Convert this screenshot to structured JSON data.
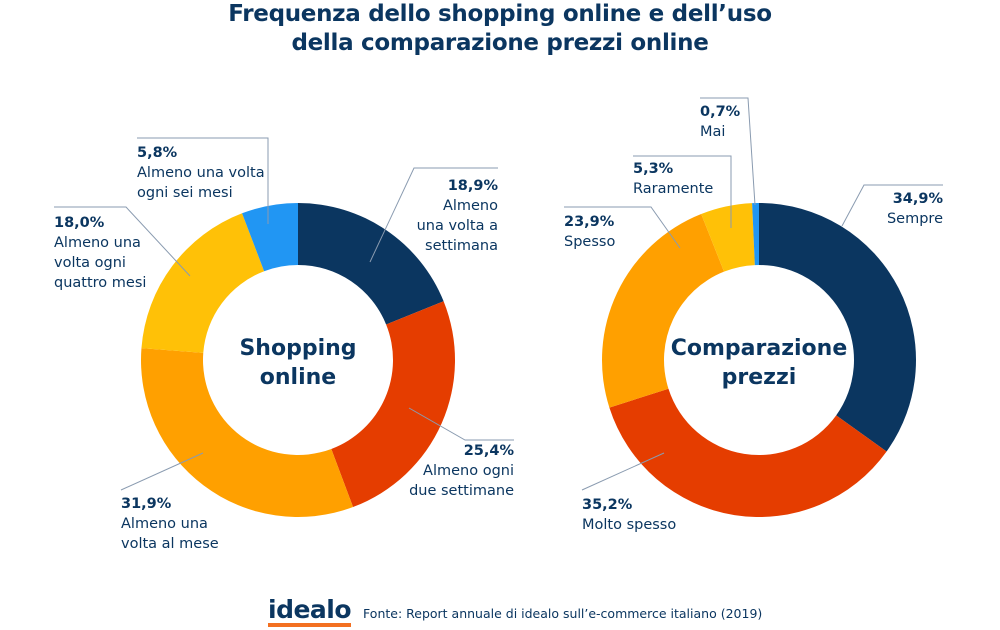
{
  "title_lines": [
    "Frequenza dello shopping online e dell’uso",
    "della comparazione prezzi online"
  ],
  "colors": {
    "dark_blue": "#0b3660",
    "red_orange": "#e53d00",
    "orange": "#ffa000",
    "yellow": "#ffc107",
    "blue": "#2196f3"
  },
  "chart_data": [
    {
      "type": "pie",
      "variant": "donut",
      "center_label": [
        "Shopping",
        "online"
      ],
      "slices": [
        {
          "value": 18.9,
          "pct_label": "18,9%",
          "label_lines": [
            "Almeno",
            "una volta a",
            "settimana"
          ],
          "color": "#0b3660"
        },
        {
          "value": 25.4,
          "pct_label": "25,4%",
          "label_lines": [
            "Almeno ogni",
            "due settimane"
          ],
          "color": "#e53d00"
        },
        {
          "value": 31.9,
          "pct_label": "31,9%",
          "label_lines": [
            "Almeno una",
            "volta al mese"
          ],
          "color": "#ffa000"
        },
        {
          "value": 18.0,
          "pct_label": "18,0%",
          "label_lines": [
            "Almeno una",
            "volta ogni",
            "quattro mesi"
          ],
          "color": "#ffc107"
        },
        {
          "value": 5.8,
          "pct_label": "5,8%",
          "label_lines": [
            "Almeno una volta",
            "ogni sei mesi"
          ],
          "color": "#2196f3"
        }
      ]
    },
    {
      "type": "pie",
      "variant": "donut",
      "center_label": [
        "Comparazione",
        "prezzi"
      ],
      "slices": [
        {
          "value": 34.9,
          "pct_label": "34,9%",
          "label_lines": [
            "Sempre"
          ],
          "color": "#0b3660"
        },
        {
          "value": 35.2,
          "pct_label": "35,2%",
          "label_lines": [
            "Molto spesso"
          ],
          "color": "#e53d00"
        },
        {
          "value": 23.9,
          "pct_label": "23,9%",
          "label_lines": [
            "Spesso"
          ],
          "color": "#ffa000"
        },
        {
          "value": 5.3,
          "pct_label": "5,3%",
          "label_lines": [
            "Raramente"
          ],
          "color": "#ffc107"
        },
        {
          "value": 0.7,
          "pct_label": "0,7%",
          "label_lines": [
            "Mai"
          ],
          "color": "#2196f3"
        }
      ]
    }
  ],
  "footer": {
    "logo": "idealo",
    "source": "Fonte: Report annuale di idealo sull’e-commerce italiano (2019)"
  }
}
